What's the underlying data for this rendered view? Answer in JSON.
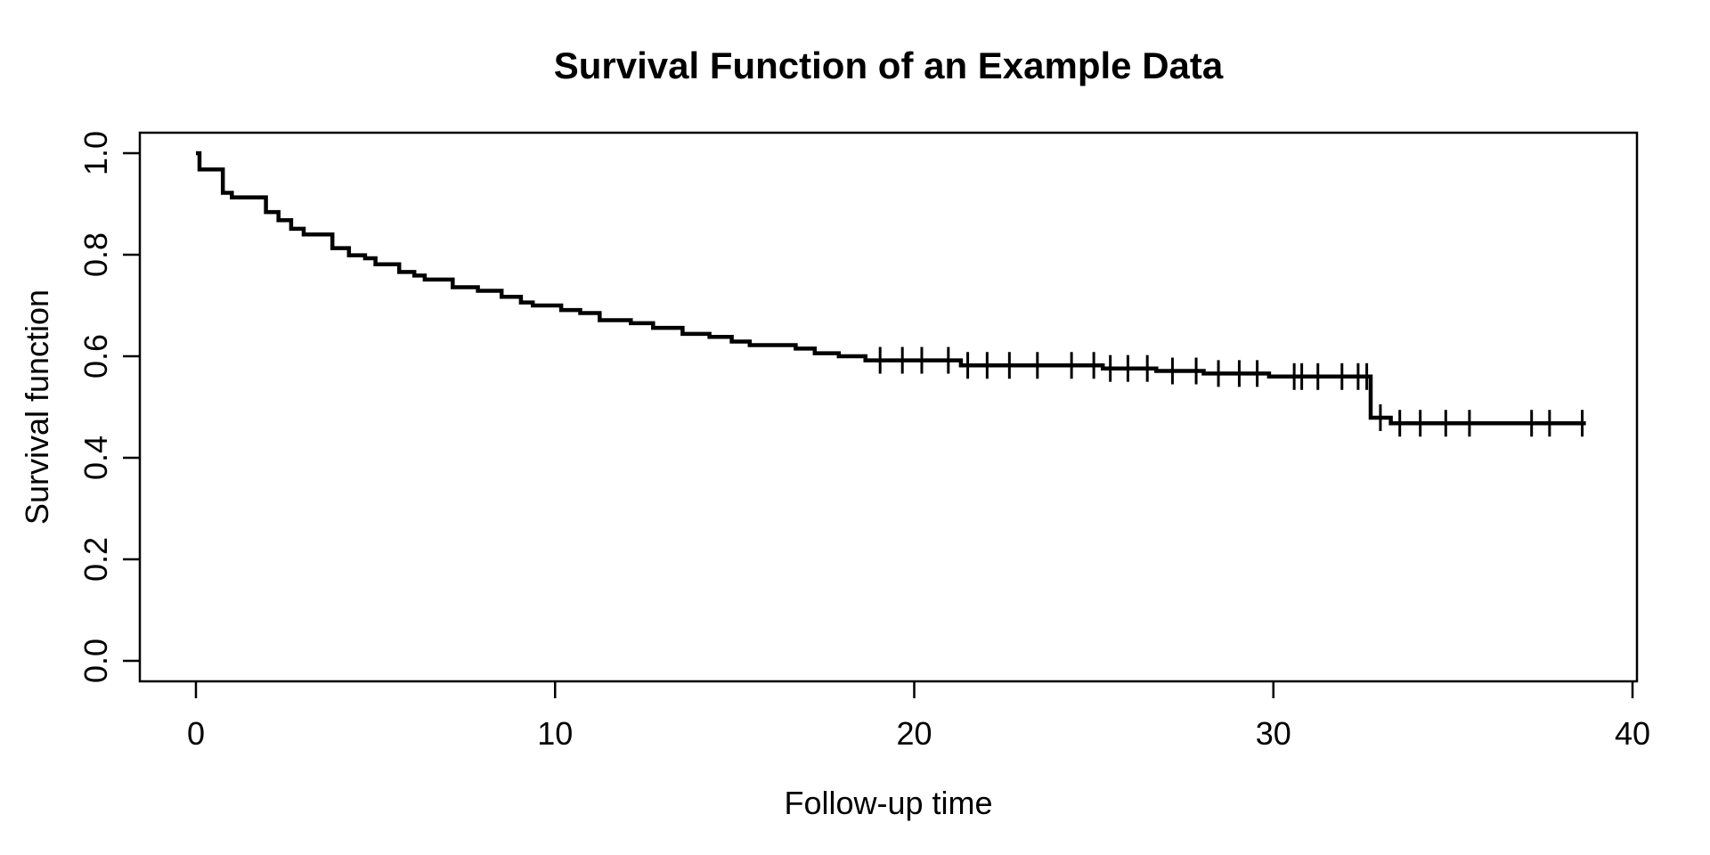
{
  "figure": {
    "background_color": "#ffffff",
    "foreground_color": "#000000"
  },
  "chart_data": {
    "type": "line",
    "subtype": "kaplan-meier-step-function",
    "title": "Survival Function of an Example Data",
    "xlabel": "Follow-up time",
    "ylabel": "Survival function",
    "xlim": [
      0,
      40
    ],
    "ylim": [
      0.0,
      1.0
    ],
    "xticks": [
      0,
      10,
      20,
      30,
      40
    ],
    "xtick_labels": [
      "0",
      "10",
      "20",
      "30",
      "40"
    ],
    "yticks": [
      0.0,
      0.2,
      0.4,
      0.6,
      0.8,
      1.0
    ],
    "ytick_labels": [
      "0.0",
      "0.2",
      "0.4",
      "0.6",
      "0.8",
      "1.0"
    ],
    "grid": false,
    "legend": false,
    "line_color": "#000000",
    "axis_color": "#000000",
    "series_start": [
      0,
      1.0
    ],
    "steps": [
      [
        0.1,
        0.968
      ],
      [
        0.75,
        0.922
      ],
      [
        1.0,
        0.913
      ],
      [
        1.95,
        0.884
      ],
      [
        2.3,
        0.868
      ],
      [
        2.65,
        0.851
      ],
      [
        3.0,
        0.84
      ],
      [
        3.8,
        0.813
      ],
      [
        4.26,
        0.799
      ],
      [
        4.71,
        0.793
      ],
      [
        5.0,
        0.781
      ],
      [
        5.66,
        0.766
      ],
      [
        6.08,
        0.759
      ],
      [
        6.37,
        0.751
      ],
      [
        7.15,
        0.736
      ],
      [
        7.85,
        0.729
      ],
      [
        8.51,
        0.717
      ],
      [
        9.05,
        0.706
      ],
      [
        9.38,
        0.7
      ],
      [
        10.17,
        0.691
      ],
      [
        10.7,
        0.685
      ],
      [
        11.24,
        0.671
      ],
      [
        12.11,
        0.665
      ],
      [
        12.73,
        0.656
      ],
      [
        13.55,
        0.644
      ],
      [
        14.3,
        0.638
      ],
      [
        14.92,
        0.629
      ],
      [
        15.42,
        0.622
      ],
      [
        16.7,
        0.615
      ],
      [
        17.23,
        0.606
      ],
      [
        17.9,
        0.6
      ],
      [
        18.64,
        0.592
      ],
      [
        21.3,
        0.582
      ],
      [
        25.25,
        0.576
      ],
      [
        26.74,
        0.571
      ],
      [
        28.06,
        0.566
      ],
      [
        29.88,
        0.56
      ],
      [
        32.71,
        0.479
      ],
      [
        33.27,
        0.468
      ]
    ],
    "end_time": 38.7,
    "censor_times": [
      19.05,
      19.67,
      20.21,
      20.95,
      21.49,
      22.03,
      22.65,
      23.43,
      24.38,
      25.0,
      25.46,
      25.95,
      26.49,
      27.19,
      27.85,
      28.47,
      29.05,
      29.55,
      30.58,
      30.79,
      31.24,
      31.91,
      32.36,
      32.6,
      32.98,
      33.52,
      34.09,
      34.8,
      35.46,
      37.19,
      37.69,
      38.6
    ]
  }
}
